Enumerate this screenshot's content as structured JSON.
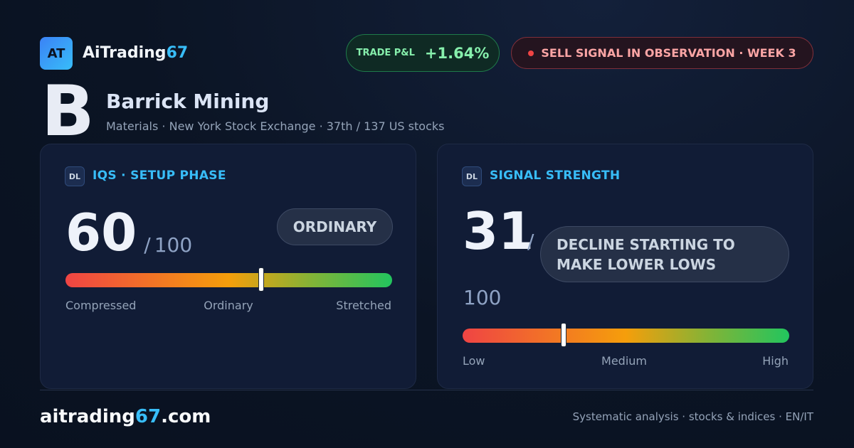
{
  "header": {
    "logo": "AT",
    "brand": [
      "AiTrading",
      "67"
    ],
    "pnl_label": "TRADE P&L",
    "pnl_value": "+1.64%",
    "signal": "SELL SIGNAL IN OBSERVATION · WEEK 3"
  },
  "company": {
    "grade": "B",
    "name": "Barrick Mining",
    "subtitle": "Materials · New York Stock Exchange · 37th / 137 US stocks"
  },
  "cards": [
    {
      "icon": "DL",
      "title": "IQS · SETUP PHASE",
      "score": 60,
      "separator": "/",
      "max": 100,
      "badge": "ORDINARY",
      "scale": [
        "Compressed",
        "Ordinary",
        "Stretched"
      ]
    },
    {
      "icon": "DL",
      "title": "SIGNAL STRENGTH",
      "score": 31,
      "separator": "/",
      "max": 100,
      "badge": "DECLINE STARTING TO MAKE LOWER LOWS",
      "scale": [
        "Low",
        "Medium",
        "High"
      ]
    }
  ],
  "footer": {
    "site": [
      "aitrading",
      "67",
      ".com"
    ],
    "tagline": "Systematic analysis · stocks & indices · EN/IT"
  }
}
